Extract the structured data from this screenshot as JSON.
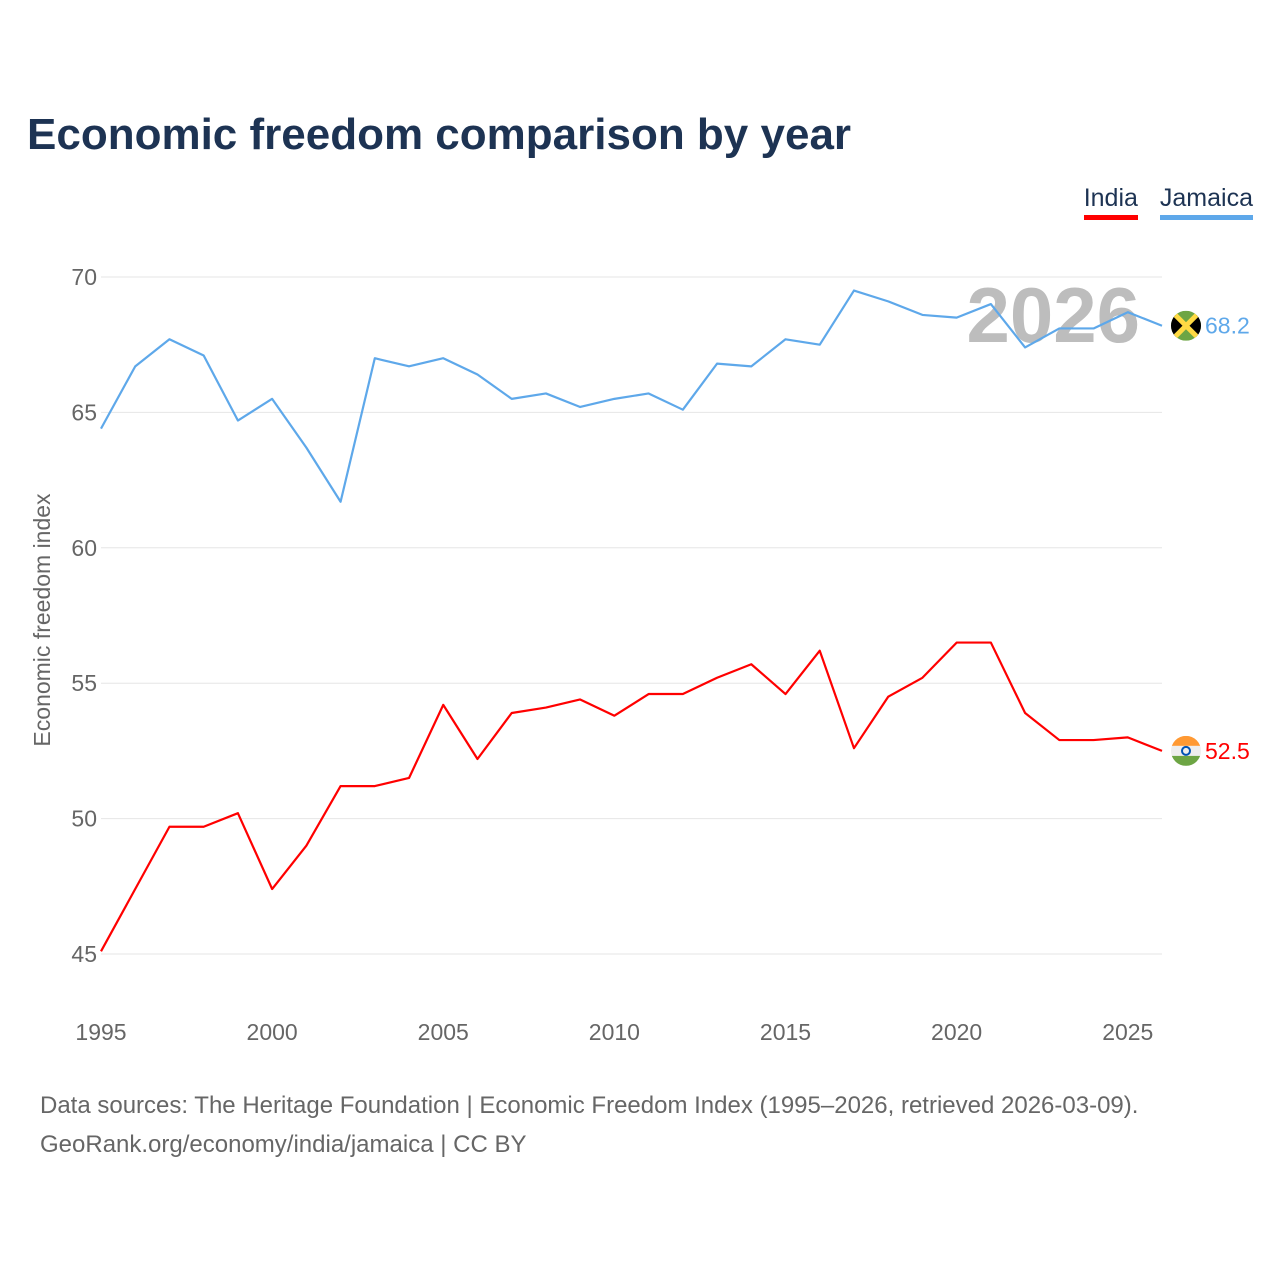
{
  "title": "Economic freedom comparison by year",
  "footer": {
    "line1": "Data sources: The Heritage Foundation | Economic Freedom Index (1995–2026, retrieved 2026-03-09).",
    "line2": "GeoRank.org/economy/india/jamaica | CC BY"
  },
  "chart_data": {
    "type": "line",
    "title": "Economic freedom comparison by year",
    "xlabel": "",
    "ylabel": "Economic freedom index",
    "xlim": [
      1995,
      2026
    ],
    "ylim": [
      45,
      70
    ],
    "x_ticks": [
      1995,
      2000,
      2005,
      2010,
      2015,
      2020,
      2025
    ],
    "y_ticks": [
      45,
      50,
      55,
      60,
      65,
      70
    ],
    "grid": true,
    "legend_position": "top-right",
    "watermark_year": "2026",
    "x": [
      1995,
      1996,
      1997,
      1998,
      1999,
      2000,
      2001,
      2002,
      2003,
      2004,
      2005,
      2006,
      2007,
      2008,
      2009,
      2010,
      2011,
      2012,
      2013,
      2014,
      2015,
      2016,
      2017,
      2018,
      2019,
      2020,
      2021,
      2022,
      2023,
      2024,
      2025,
      2026
    ],
    "series": [
      {
        "name": "India",
        "color": "#ff0000",
        "end_label": "52.5",
        "flag_icon": "india-flag-icon",
        "values": [
          45.1,
          47.4,
          49.7,
          49.7,
          50.2,
          47.4,
          49.0,
          51.2,
          51.2,
          51.5,
          54.2,
          52.2,
          53.9,
          54.1,
          54.4,
          53.8,
          54.6,
          54.6,
          55.2,
          55.7,
          54.6,
          56.2,
          52.6,
          54.5,
          55.2,
          56.5,
          56.5,
          53.9,
          52.9,
          52.9,
          53.0,
          52.5
        ]
      },
      {
        "name": "Jamaica",
        "color": "#5ea8ea",
        "end_label": "68.2",
        "flag_icon": "jamaica-flag-icon",
        "values": [
          64.4,
          66.7,
          67.7,
          67.1,
          64.7,
          65.5,
          63.7,
          61.7,
          67.0,
          66.7,
          67.0,
          66.4,
          65.5,
          65.7,
          65.2,
          65.5,
          65.7,
          65.1,
          66.8,
          66.7,
          67.7,
          67.5,
          69.5,
          69.1,
          68.6,
          68.5,
          69.0,
          67.4,
          68.1,
          68.1,
          68.7,
          68.2
        ]
      }
    ]
  }
}
